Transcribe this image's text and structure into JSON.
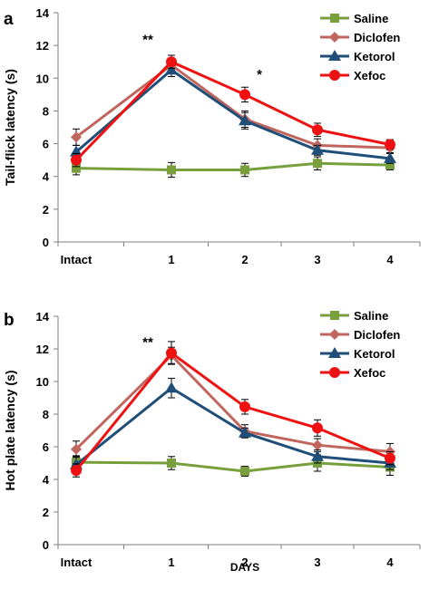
{
  "series_styles": [
    {
      "name": "Saline",
      "color": "#77A03C",
      "marker": "square"
    },
    {
      "name": "Diclofen",
      "color": "#C0665E",
      "marker": "diamond"
    },
    {
      "name": "Ketorol",
      "color": "#1F4E79",
      "marker": "triangle"
    },
    {
      "name": "Xefoc",
      "color": "#EE1111",
      "marker": "circle"
    }
  ],
  "chart_data": [
    {
      "type": "line",
      "panel_label": "a",
      "ylabel": "Tail-flick latency (s)",
      "xlabel": "",
      "categories": [
        "Intact",
        "1",
        "2",
        "3",
        "4"
      ],
      "ylim": [
        0,
        14
      ],
      "yticks": [
        0,
        2,
        4,
        6,
        8,
        10,
        12,
        14
      ],
      "grid": false,
      "legend_position": "top-right",
      "series": [
        {
          "name": "Saline",
          "values": [
            4.5,
            4.4,
            4.4,
            4.8,
            4.7
          ],
          "errors": [
            0.4,
            0.45,
            0.4,
            0.4,
            0.3
          ]
        },
        {
          "name": "Diclofen",
          "values": [
            6.4,
            10.8,
            7.5,
            5.9,
            5.75
          ],
          "errors": [
            0.5,
            0.4,
            0.5,
            0.4,
            0.3
          ]
        },
        {
          "name": "Ketorol",
          "values": [
            5.5,
            10.5,
            7.4,
            5.6,
            5.1
          ],
          "errors": [
            0.4,
            0.4,
            0.5,
            0.3,
            0.3
          ]
        },
        {
          "name": "Xefoc",
          "values": [
            5.0,
            11.0,
            9.0,
            6.85,
            5.95
          ],
          "errors": [
            0.4,
            0.4,
            0.45,
            0.4,
            0.3
          ]
        }
      ],
      "annotations": [
        {
          "text": "**",
          "category": "1",
          "y": 12.1
        },
        {
          "text": "*",
          "category": "2",
          "y": 9.95
        }
      ]
    },
    {
      "type": "line",
      "panel_label": "b",
      "ylabel": "Hot plate latency (s)",
      "xlabel": "DAYS",
      "categories": [
        "Intact",
        "1",
        "2",
        "3",
        "4"
      ],
      "ylim": [
        0,
        14
      ],
      "yticks": [
        0,
        2,
        4,
        6,
        8,
        10,
        12,
        14
      ],
      "grid": false,
      "legend_position": "top-right",
      "series": [
        {
          "name": "Saline",
          "values": [
            5.05,
            5.0,
            4.5,
            5.0,
            4.75
          ],
          "errors": [
            0.4,
            0.4,
            0.3,
            0.5,
            0.5
          ]
        },
        {
          "name": "Diclofen",
          "values": [
            5.85,
            11.6,
            6.95,
            6.1,
            5.7
          ],
          "errors": [
            0.5,
            0.5,
            0.4,
            0.4,
            0.5
          ]
        },
        {
          "name": "Ketorol",
          "values": [
            4.9,
            9.6,
            6.85,
            5.4,
            5.0
          ],
          "errors": [
            0.5,
            0.6,
            0.3,
            0.4,
            0.4
          ]
        },
        {
          "name": "Xefoc",
          "values": [
            4.55,
            11.75,
            8.45,
            7.15,
            5.3
          ],
          "errors": [
            0.4,
            0.7,
            0.45,
            0.5,
            0.4
          ]
        }
      ],
      "annotations": [
        {
          "text": "**",
          "category": "1",
          "y": 12.15
        }
      ]
    }
  ]
}
